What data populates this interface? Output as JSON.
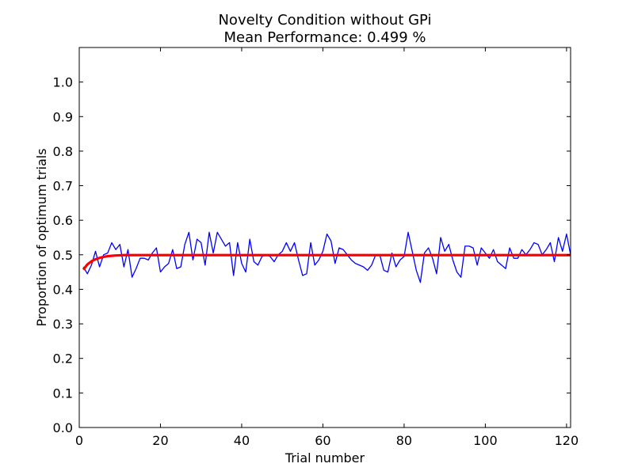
{
  "chart_data": {
    "type": "line",
    "title": "Novelty Condition without GPi",
    "subtitle": "Mean Performance: 0.499 %",
    "xlabel": "Trial number",
    "ylabel": "Proportion of optimum trials",
    "xlim": [
      0,
      121
    ],
    "ylim": [
      0.0,
      1.1
    ],
    "xticks": [
      "0",
      "20",
      "40",
      "60",
      "80",
      "100",
      "120"
    ],
    "yticks": [
      "0.0",
      "0.1",
      "0.2",
      "0.3",
      "0.4",
      "0.5",
      "0.6",
      "0.7",
      "0.8",
      "0.9",
      "1.0"
    ],
    "grid": false,
    "series": [
      {
        "color": "#0000ff",
        "x": [
          1,
          2,
          3,
          4,
          5,
          6,
          7,
          8,
          9,
          10,
          11,
          12,
          13,
          14,
          15,
          16,
          17,
          18,
          19,
          20,
          21,
          22,
          23,
          24,
          25,
          26,
          27,
          28,
          29,
          30,
          31,
          32,
          33,
          34,
          35,
          36,
          37,
          38,
          39,
          40,
          41,
          42,
          43,
          44,
          45,
          46,
          47,
          48,
          49,
          50,
          51,
          52,
          53,
          54,
          55,
          56,
          57,
          58,
          59,
          60,
          61,
          62,
          63,
          64,
          65,
          66,
          67,
          68,
          69,
          70,
          71,
          72,
          73,
          74,
          75,
          76,
          77,
          78,
          79,
          80,
          81,
          82,
          83,
          84,
          85,
          86,
          87,
          88,
          89,
          90,
          91,
          92,
          93,
          94,
          95,
          96,
          97,
          98,
          99,
          100,
          101,
          102,
          103,
          104,
          105,
          106,
          107,
          108,
          109,
          110,
          111,
          112,
          113,
          114,
          115,
          116,
          117,
          118,
          119,
          120,
          121
        ],
        "y": [
          0.465,
          0.445,
          0.47,
          0.51,
          0.465,
          0.5,
          0.505,
          0.535,
          0.515,
          0.53,
          0.465,
          0.515,
          0.435,
          0.46,
          0.49,
          0.49,
          0.485,
          0.505,
          0.52,
          0.45,
          0.465,
          0.475,
          0.515,
          0.46,
          0.465,
          0.53,
          0.565,
          0.485,
          0.545,
          0.535,
          0.47,
          0.565,
          0.505,
          0.565,
          0.545,
          0.525,
          0.535,
          0.44,
          0.535,
          0.475,
          0.45,
          0.545,
          0.48,
          0.47,
          0.495,
          0.5,
          0.495,
          0.48,
          0.5,
          0.51,
          0.535,
          0.51,
          0.535,
          0.485,
          0.44,
          0.445,
          0.535,
          0.47,
          0.485,
          0.51,
          0.56,
          0.54,
          0.475,
          0.52,
          0.515,
          0.5,
          0.485,
          0.475,
          0.47,
          0.465,
          0.455,
          0.47,
          0.5,
          0.5,
          0.455,
          0.45,
          0.505,
          0.465,
          0.485,
          0.495,
          0.565,
          0.51,
          0.455,
          0.42,
          0.505,
          0.52,
          0.49,
          0.445,
          0.55,
          0.51,
          0.53,
          0.485,
          0.45,
          0.435,
          0.525,
          0.525,
          0.52,
          0.47,
          0.52,
          0.505,
          0.49,
          0.515,
          0.48,
          0.47,
          0.46,
          0.52,
          0.49,
          0.49,
          0.515,
          0.5,
          0.515,
          0.535,
          0.53,
          0.5,
          0.515,
          0.535,
          0.48,
          0.55,
          0.51,
          0.56,
          0.5
        ]
      },
      {
        "color": "#ff0000",
        "x": [
          1,
          2,
          3,
          4,
          5,
          6,
          7,
          8,
          9,
          10,
          11,
          12,
          13,
          14,
          15,
          20,
          30,
          40,
          50,
          60,
          70,
          80,
          90,
          100,
          110,
          121
        ],
        "y": [
          0.457,
          0.472,
          0.481,
          0.487,
          0.491,
          0.494,
          0.496,
          0.497,
          0.498,
          0.4985,
          0.499,
          0.499,
          0.499,
          0.499,
          0.499,
          0.499,
          0.499,
          0.499,
          0.499,
          0.499,
          0.499,
          0.499,
          0.499,
          0.499,
          0.499,
          0.499
        ]
      }
    ]
  }
}
